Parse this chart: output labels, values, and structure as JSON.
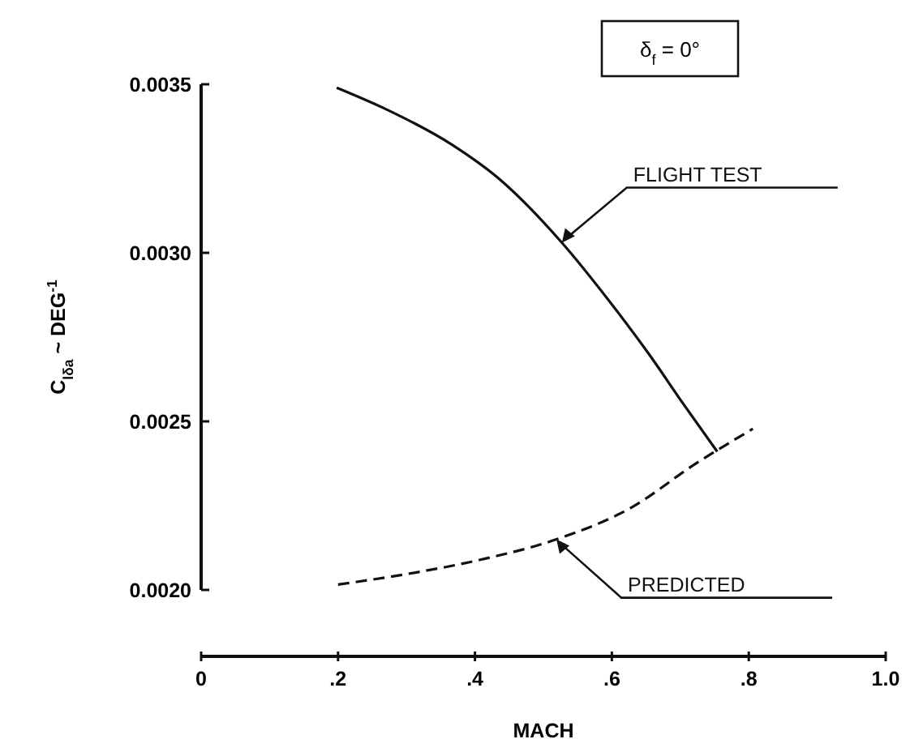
{
  "chart_data": {
    "type": "line",
    "xlabel": "MACH",
    "ylabel": "C$_{lδa}$ ~ DEG$^{-1}$",
    "annotations": [
      "δ$_{f}$ = 0°"
    ],
    "xlim": [
      0,
      1
    ],
    "xticks": [
      0,
      {
        "value": 0.2,
        "label": ".2"
      },
      {
        "value": 0.4,
        "label": ".4"
      },
      {
        "value": 0.6,
        "label": ".6"
      },
      {
        "value": 0.8,
        "label": ".8"
      },
      {
        "value": 1,
        "label": "1.0"
      }
    ],
    "ylim": [
      0.002,
      0.0035
    ],
    "yticks": [
      {
        "value": 0.002,
        "label": "0.0020"
      },
      {
        "value": 0.0025,
        "label": "0.0025"
      },
      {
        "value": 0.003,
        "label": "0.0030"
      },
      {
        "value": 0.0035,
        "label": "0.0035"
      }
    ],
    "grid": false,
    "marker": "none",
    "series": [
      {
        "name": "FLIGHT TEST",
        "color": "#111111",
        "line_style": "solid",
        "x": [
          0.198,
          0.266,
          0.367,
          0.435,
          0.527,
          0.595,
          0.654,
          0.705,
          0.754
        ],
        "values": [
          0.00349,
          0.00343,
          0.00332,
          0.00322,
          0.00303,
          0.00286,
          0.0027,
          0.00255,
          0.00241
        ]
      },
      {
        "name": "PREDICTED",
        "color": "#111111",
        "line_style": "dashed",
        "x": [
          0.2,
          0.3,
          0.409,
          0.519,
          0.629,
          0.722,
          0.806
        ],
        "values": [
          0.002016,
          0.002047,
          0.00209,
          0.00215,
          0.002245,
          0.002374,
          0.002478
        ]
      }
    ]
  }
}
